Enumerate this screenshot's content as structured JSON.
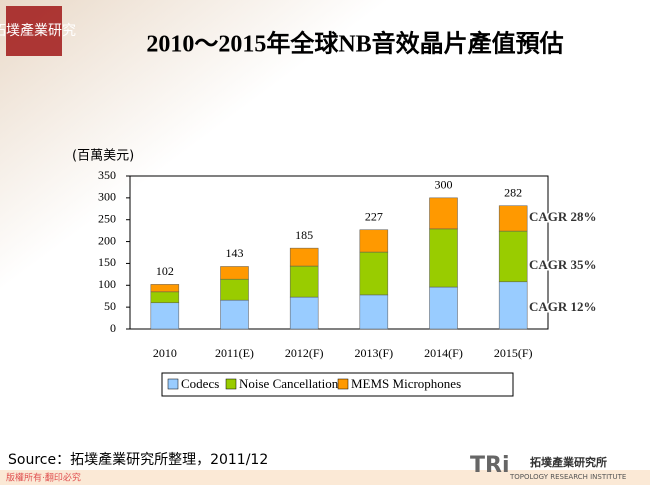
{
  "header": {
    "logo": "拓墣產業研究",
    "title": "2010～2015年全球NB音效晶片產值預估"
  },
  "chart_data": {
    "type": "stacked-bar",
    "y_label": "(百萬美元)",
    "categories": [
      "2010",
      "2011(E)",
      "2012(F)",
      "2013(F)",
      "2014(F)",
      "2015(F)"
    ],
    "series": [
      {
        "name": "Codecs",
        "color": "#99ccff",
        "values": [
          60,
          66,
          73,
          78,
          96,
          108
        ]
      },
      {
        "name": "Noise Cancellation",
        "color": "#99cc00",
        "values": [
          25,
          48,
          71,
          98,
          133,
          116
        ]
      },
      {
        "name": "MEMS Microphones",
        "color": "#ff9900",
        "values": [
          17,
          29,
          41,
          51,
          71,
          58
        ]
      }
    ],
    "totals": [
      102,
      143,
      185,
      227,
      300,
      282
    ],
    "annotations": [
      "CAGR 28%",
      "CAGR 35%",
      "CAGR 12%"
    ],
    "ylim": [
      0,
      350
    ],
    "yticks": [
      0,
      50,
      100,
      150,
      200,
      250,
      300,
      350
    ],
    "grid": false,
    "legend": "bottom"
  },
  "footer": {
    "source": "Source：拓墣產業研究所整理，2011/12",
    "copyright": "版權所有‧翻印必究",
    "brand": "TRi",
    "brand_cn": "拓墣產業研究所",
    "brand_en": "TOPOLOGY RESEARCH INSTITUTE"
  }
}
